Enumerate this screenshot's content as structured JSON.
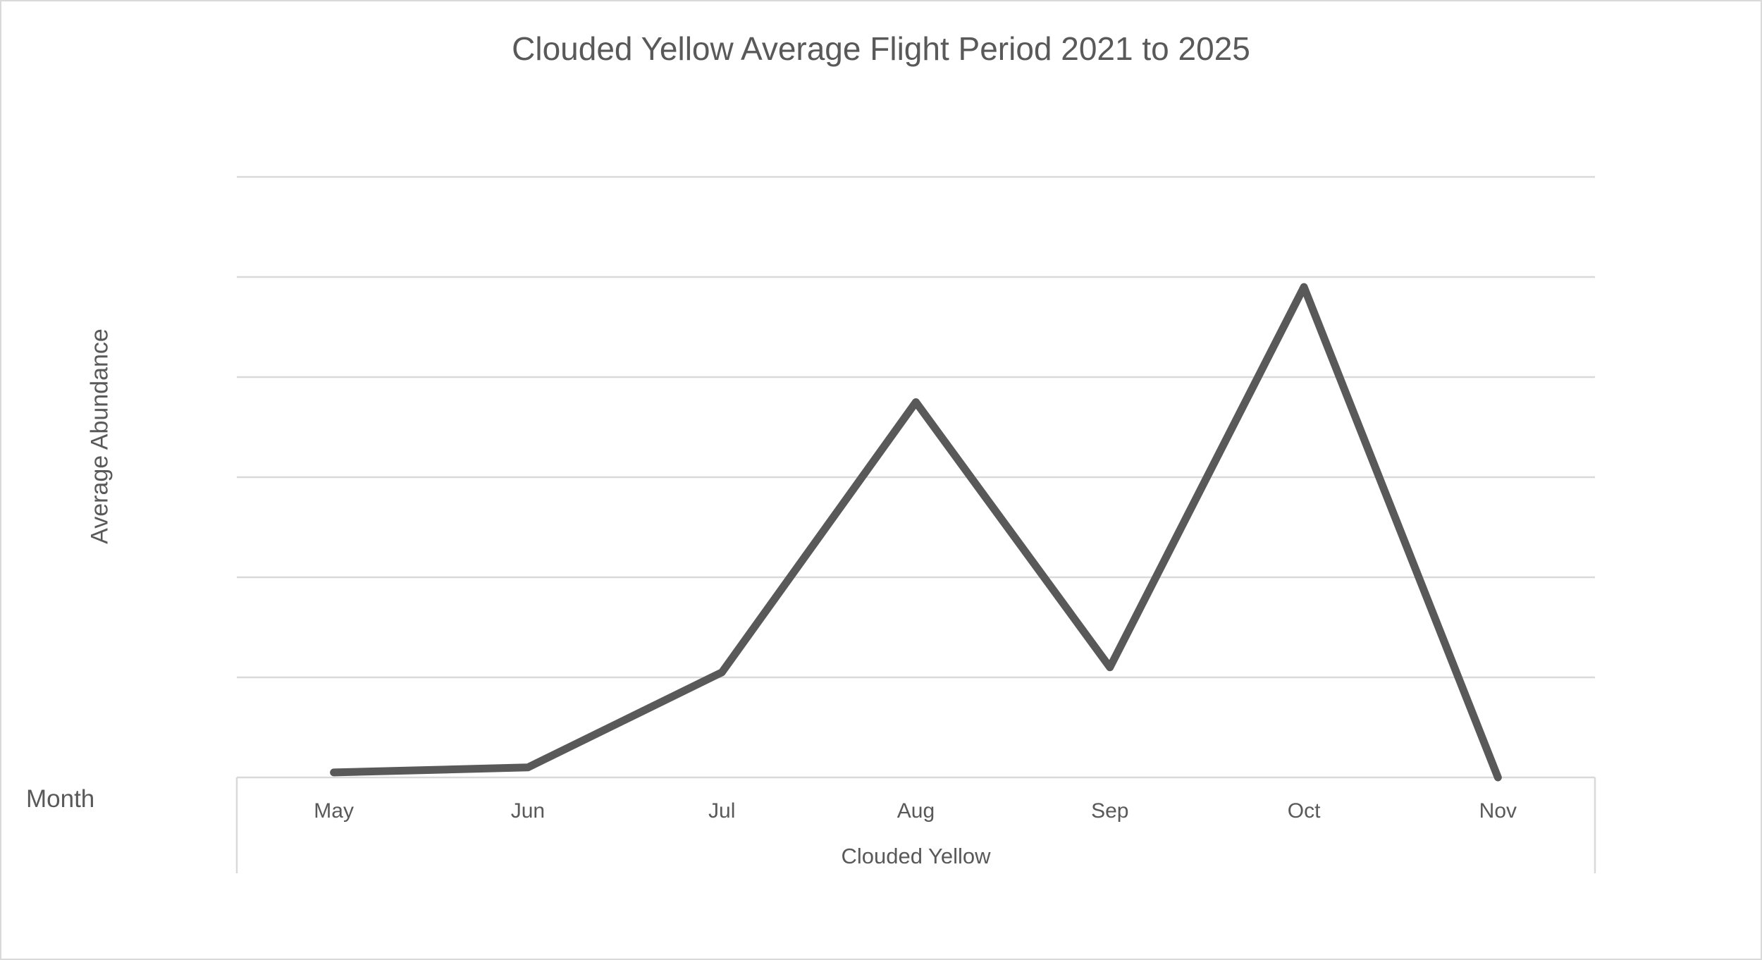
{
  "title": "Clouded Yellow Average Flight Period 2021 to 2025",
  "y_axis_title": "Average Abundance",
  "x_axis_title": "Clouded Yellow",
  "month_label": "Month",
  "colors": {
    "line": "#595959",
    "gridline": "#d9d9d9",
    "axis": "#d9d9d9",
    "text": "#595959",
    "canvas_border": "#d9d9d9",
    "background": "#ffffff"
  },
  "chart_data": {
    "type": "line",
    "categories": [
      "May",
      "Jun",
      "Jul",
      "Aug",
      "Sep",
      "Oct",
      "Nov"
    ],
    "series": [
      {
        "name": "Clouded Yellow",
        "values": [
          0.05,
          0.1,
          1.05,
          3.75,
          1.1,
          4.9,
          0
        ]
      }
    ],
    "title": "Clouded Yellow Average Flight Period 2021 to 2025",
    "xlabel": "Clouded Yellow",
    "ylabel": "Average Abundance",
    "x_outer_label": "Month",
    "ylim": [
      0,
      6
    ],
    "y_gridlines": [
      1,
      2,
      3,
      4,
      5,
      6
    ],
    "grid": true,
    "legend": false,
    "y_tick_labels_visible": false,
    "x_tick_labels_visible": true
  }
}
